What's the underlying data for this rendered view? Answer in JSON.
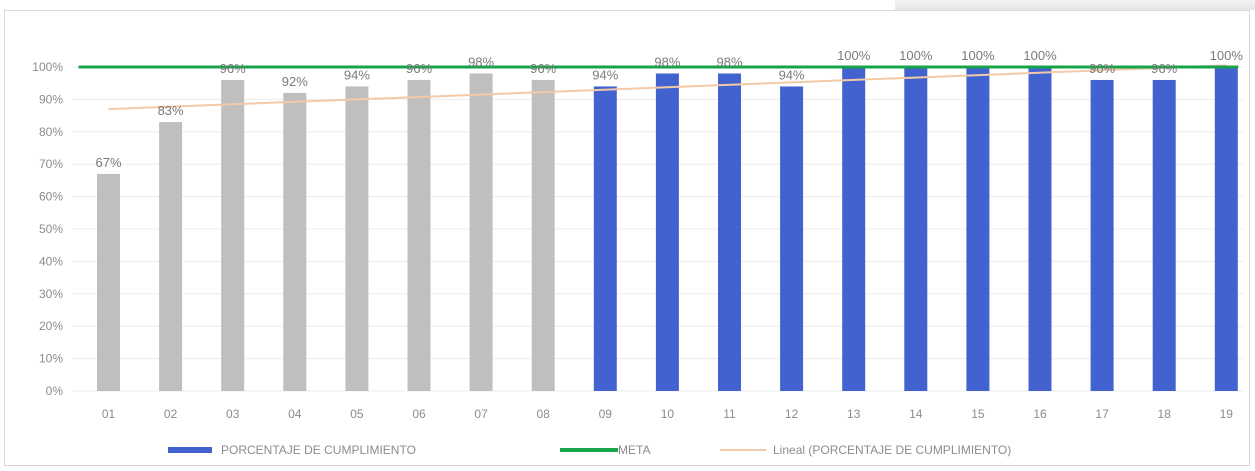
{
  "chart_data": {
    "type": "bar",
    "categories": [
      "01",
      "02",
      "03",
      "04",
      "05",
      "06",
      "07",
      "08",
      "09",
      "10",
      "11",
      "12",
      "13",
      "14",
      "15",
      "16",
      "17",
      "18",
      "19"
    ],
    "series": [
      {
        "name": "PORCENTAJE DE CUMPLIMIENTO",
        "type": "bar",
        "values": [
          67,
          83,
          96,
          92,
          94,
          96,
          98,
          96,
          94,
          98,
          98,
          94,
          100,
          100,
          100,
          100,
          96,
          96,
          100
        ],
        "data_labels": [
          "67%",
          "83%",
          "96%",
          "92%",
          "94%",
          "96%",
          "98%",
          "96%",
          "94%",
          "98%",
          "98%",
          "94%",
          "100%",
          "100%",
          "100%",
          "100%",
          "96%",
          "96%",
          "100%"
        ],
        "colors": [
          "#bfbfbf",
          "#bfbfbf",
          "#bfbfbf",
          "#bfbfbf",
          "#bfbfbf",
          "#bfbfbf",
          "#bfbfbf",
          "#bfbfbf",
          "#4263cf",
          "#4263cf",
          "#4263cf",
          "#4263cf",
          "#4263cf",
          "#4263cf",
          "#4263cf",
          "#4263cf",
          "#4263cf",
          "#4263cf",
          "#4263cf"
        ]
      },
      {
        "name": "META",
        "type": "line",
        "values": [
          100,
          100,
          100,
          100,
          100,
          100,
          100,
          100,
          100,
          100,
          100,
          100,
          100,
          100,
          100,
          100,
          100,
          100,
          100
        ],
        "color": "#16a34a"
      },
      {
        "name": "Lineal (PORCENTAJE DE CUMPLIMIENTO)",
        "type": "trendline",
        "start": 87,
        "end": 100.5,
        "color": "#f3c9a8"
      }
    ],
    "yticks": [
      "0%",
      "10%",
      "20%",
      "30%",
      "40%",
      "50%",
      "60%",
      "70%",
      "80%",
      "90%",
      "100%"
    ],
    "ylim": [
      0,
      100
    ],
    "grid": true,
    "legend_position": "bottom"
  }
}
